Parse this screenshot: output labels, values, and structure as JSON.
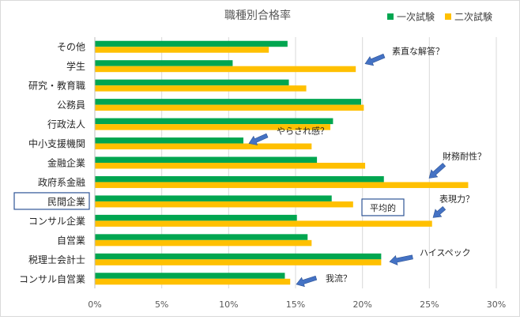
{
  "chart_data": {
    "type": "bar",
    "orientation": "horizontal",
    "title": "職種別合格率",
    "categories": [
      "その他",
      "学生",
      "研究・教育職",
      "公務員",
      "行政法人",
      "中小支援機関",
      "金融企業",
      "政府系金融",
      "民間企業",
      "コンサル企業",
      "自営業",
      "税理士会計士",
      "コンサル自営業"
    ],
    "series": [
      {
        "name": "一次試験",
        "color": "#00a650",
        "values": [
          0.144,
          0.103,
          0.145,
          0.199,
          0.178,
          0.111,
          0.166,
          0.216,
          0.177,
          0.151,
          0.159,
          0.214,
          0.142
        ]
      },
      {
        "name": "二次試験",
        "color": "#ffc000",
        "values": [
          0.13,
          0.195,
          0.158,
          0.201,
          0.176,
          0.162,
          0.202,
          0.279,
          0.193,
          0.252,
          0.162,
          0.214,
          0.146
        ]
      }
    ],
    "xlim": [
      0,
      0.3
    ],
    "xticks": [
      0,
      0.05,
      0.1,
      0.15,
      0.2,
      0.25,
      0.3
    ],
    "xtick_labels": [
      "0%",
      "5%",
      "10%",
      "15%",
      "20%",
      "25%",
      "30%"
    ],
    "xlabel": "",
    "ylabel": "",
    "grid": "vertical",
    "legend_position": "top-right",
    "highlighted_category": "民間企業",
    "reference_label": "平均的",
    "annotations": [
      {
        "text": "素直な解答？",
        "category": "学生"
      },
      {
        "text": "やらされ感？",
        "category": "中小支援機関"
      },
      {
        "text": "財務耐性？",
        "category": "政府系金融"
      },
      {
        "text": "表現力？",
        "category": "コンサル企業"
      },
      {
        "text": "ハイスペック",
        "category": "税理士会計士"
      },
      {
        "text": "我流？",
        "category": "コンサル自営業"
      }
    ],
    "arrow_color": "#4472c4"
  }
}
